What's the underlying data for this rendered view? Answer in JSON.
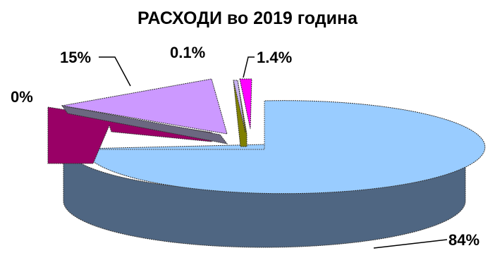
{
  "chart_data": {
    "type": "pie",
    "title": "РАСХОДИ во 2019 година",
    "slices": [
      {
        "label": "84%",
        "value": 84,
        "top_color": "#99CCFF",
        "side_color": "#4F6682"
      },
      {
        "label": "0%",
        "value": 0,
        "top_color": "#990066",
        "side_color": "#660044"
      },
      {
        "label": "15%",
        "value": 15,
        "top_color": "#CC99FF",
        "side_color": "#6B6780"
      },
      {
        "label": "0.1%",
        "value": 0.1,
        "top_color": "#C9B4F2",
        "side_color": "#6B6780"
      },
      {
        "label": "1.4%",
        "value": 1.4,
        "top_color": "#FF00FF",
        "side_color": "#808000"
      }
    ],
    "legend": "none",
    "style": "3d-exploded"
  }
}
